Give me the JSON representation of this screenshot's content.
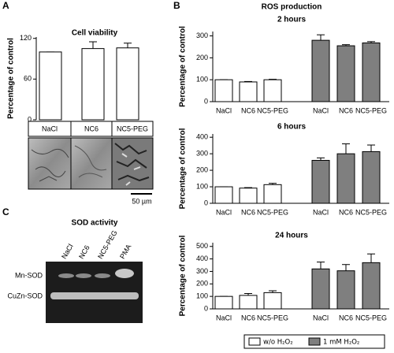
{
  "panels": {
    "a": "A",
    "b": "B",
    "c": "C"
  },
  "ros_title": "ROS production",
  "scale_bar": "50 µm",
  "gel": {
    "title": "SOD activity",
    "lanes": [
      "NaCl",
      "NC6",
      "NC5-PEG",
      "PMA"
    ],
    "bands": [
      "Mn-SOD",
      "CuZn-SOD"
    ]
  },
  "chart_data": [
    {
      "type": "bar",
      "title": "Cell viability",
      "y_label": "Percentage of control",
      "categories": [
        "NaCl",
        "NC6",
        "NC5-PEG"
      ],
      "values": [
        100,
        105,
        106
      ],
      "errors": [
        0,
        10,
        7
      ],
      "color": "#ffffff",
      "ylim": [
        0,
        122
      ],
      "yticks": [
        0,
        60,
        120
      ]
    },
    {
      "type": "bar",
      "title": "2 hours",
      "y_label": "Percentage of control",
      "categories": [
        "NaCl",
        "NC6",
        "NC5-PEG"
      ],
      "series": [
        {
          "color": "#ffffff",
          "values": [
            100,
            90,
            100
          ],
          "errors": [
            0,
            2,
            2
          ]
        },
        {
          "color": "#7f7f7f",
          "values": [
            280,
            255,
            268
          ],
          "errors": [
            25,
            5,
            6
          ]
        }
      ],
      "ylim": [
        0,
        320
      ],
      "yticks": [
        0,
        100,
        200,
        300
      ]
    },
    {
      "type": "bar",
      "title": "6 hours",
      "y_label": "Percentage of control",
      "categories": [
        "NaCl",
        "NC6",
        "NC5-PEG"
      ],
      "series": [
        {
          "color": "#ffffff",
          "values": [
            100,
            92,
            113
          ],
          "errors": [
            0,
            3,
            8
          ]
        },
        {
          "color": "#7f7f7f",
          "values": [
            260,
            300,
            313
          ],
          "errors": [
            15,
            60,
            40
          ]
        }
      ],
      "ylim": [
        0,
        420
      ],
      "yticks": [
        0,
        100,
        200,
        300,
        400
      ]
    },
    {
      "type": "bar",
      "title": "24 hours",
      "y_label": "Percentage of control",
      "categories": [
        "NaCl",
        "NC6",
        "NC5-PEG"
      ],
      "series": [
        {
          "name": "w/o H₂O₂",
          "color": "#ffffff",
          "values": [
            100,
            108,
            130
          ],
          "errors": [
            0,
            15,
            15
          ]
        },
        {
          "name": "1 mM H₂O₂",
          "color": "#7f7f7f",
          "values": [
            320,
            305,
            370
          ],
          "errors": [
            55,
            50,
            70
          ]
        }
      ],
      "ylim": [
        0,
        530
      ],
      "yticks": [
        0,
        100,
        200,
        300,
        400,
        500
      ]
    }
  ]
}
